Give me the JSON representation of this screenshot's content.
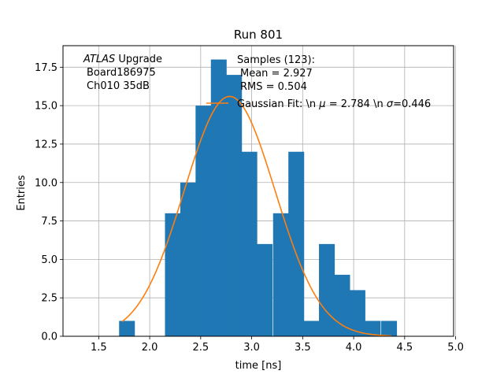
{
  "chart_data": {
    "type": "bar",
    "title": "Run 801",
    "xlabel": "time [ns]",
    "ylabel": "Entries",
    "xlim": [
      1.15,
      4.98
    ],
    "ylim": [
      0,
      18.9
    ],
    "grid": true,
    "xticks": [
      1.5,
      2.0,
      2.5,
      3.0,
      3.5,
      4.0,
      4.5,
      5.0
    ],
    "xtick_labels": [
      "1.5",
      "2.0",
      "2.5",
      "3.0",
      "3.5",
      "4.0",
      "4.5",
      "5.0"
    ],
    "yticks": [
      0.0,
      2.5,
      5.0,
      7.5,
      10.0,
      12.5,
      15.0,
      17.5
    ],
    "ytick_labels": [
      "0.0",
      "2.5",
      "5.0",
      "7.5",
      "10.0",
      "12.5",
      "15.0",
      "17.5"
    ],
    "bar_color": "#1f77b4",
    "curve_color": "#ff7f0e",
    "histogram": {
      "bin_width": 0.1515,
      "bins": [
        {
          "x0": 1.7,
          "count": 1
        },
        {
          "x0": 2.15,
          "count": 8
        },
        {
          "x0": 2.3,
          "count": 10
        },
        {
          "x0": 2.45,
          "count": 15
        },
        {
          "x0": 2.6,
          "count": 18
        },
        {
          "x0": 2.75,
          "count": 17
        },
        {
          "x0": 2.9,
          "count": 12
        },
        {
          "x0": 3.05,
          "count": 6
        },
        {
          "x0": 3.21,
          "count": 8
        },
        {
          "x0": 3.36,
          "count": 12
        },
        {
          "x0": 3.51,
          "count": 1
        },
        {
          "x0": 3.66,
          "count": 6
        },
        {
          "x0": 3.81,
          "count": 4
        },
        {
          "x0": 3.96,
          "count": 3
        },
        {
          "x0": 4.11,
          "count": 1
        },
        {
          "x0": 4.27,
          "count": 1
        }
      ]
    },
    "gaussian_fit": {
      "mu": 2.784,
      "sigma": 0.446,
      "amplitude": 15.6,
      "x_start": 1.73,
      "x_end": 4.37
    },
    "annotations": {
      "atlas_italic": "ATLAS",
      "atlas_rest": " Upgrade",
      "board": "Board186975",
      "channel": "Ch010 35dB",
      "samples": "Samples (123):",
      "mean": "Mean = 2.927",
      "rms": "RMS = 0.504",
      "fit_prefix": "Gaussian Fit: \\n ",
      "fit_mu_sym": "μ",
      "fit_mu_val": " = 2.784 \\n ",
      "fit_sigma_sym": "σ",
      "fit_sigma_val": "=0.446"
    }
  }
}
